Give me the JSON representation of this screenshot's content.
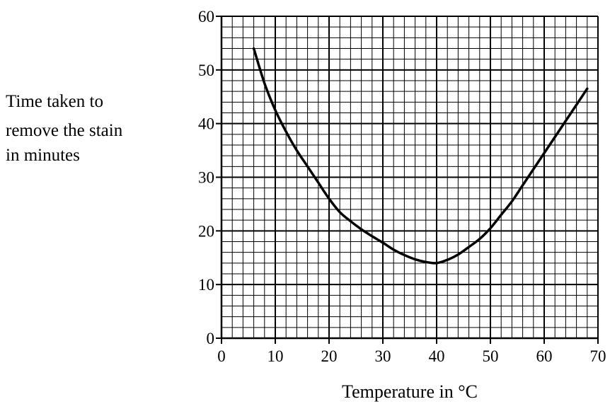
{
  "chart_data": {
    "type": "line",
    "xlabel": "Temperature in °C",
    "ylabel_lines": [
      "Time taken to",
      "remove the stain",
      "in minutes"
    ],
    "xlim": [
      0,
      70
    ],
    "ylim": [
      0,
      60
    ],
    "x_ticks": [
      0,
      10,
      20,
      30,
      40,
      50,
      60,
      70
    ],
    "y_ticks": [
      0,
      10,
      20,
      30,
      40,
      50,
      60
    ],
    "x_tick_labels": [
      "0",
      "10",
      "20",
      "30",
      "40",
      "50",
      "60",
      "70"
    ],
    "y_tick_labels": [
      "0",
      "10",
      "20",
      "30",
      "40",
      "50",
      "60"
    ],
    "grid": {
      "major_step_x": 10,
      "major_step_y": 10,
      "minor_step_x": 2,
      "minor_step_y": 2
    },
    "series": [
      {
        "x": [
          6,
          8,
          10,
          12,
          14,
          16,
          18,
          20,
          22,
          24,
          26,
          28,
          30,
          32,
          34,
          36,
          38,
          40,
          42,
          44,
          46,
          48,
          50,
          52,
          54,
          56,
          58,
          60,
          62,
          64,
          66,
          68
        ],
        "y": [
          54,
          47.5,
          42.5,
          38.5,
          35,
          32,
          29,
          26,
          23.5,
          21.8,
          20.3,
          19,
          17.8,
          16.5,
          15.5,
          14.7,
          14.2,
          14,
          14.6,
          15.6,
          17,
          18.5,
          20.5,
          23,
          25.5,
          28.5,
          31.5,
          34.5,
          37.5,
          40.5,
          43.5,
          46.5
        ],
        "color": "#000000"
      }
    ]
  }
}
